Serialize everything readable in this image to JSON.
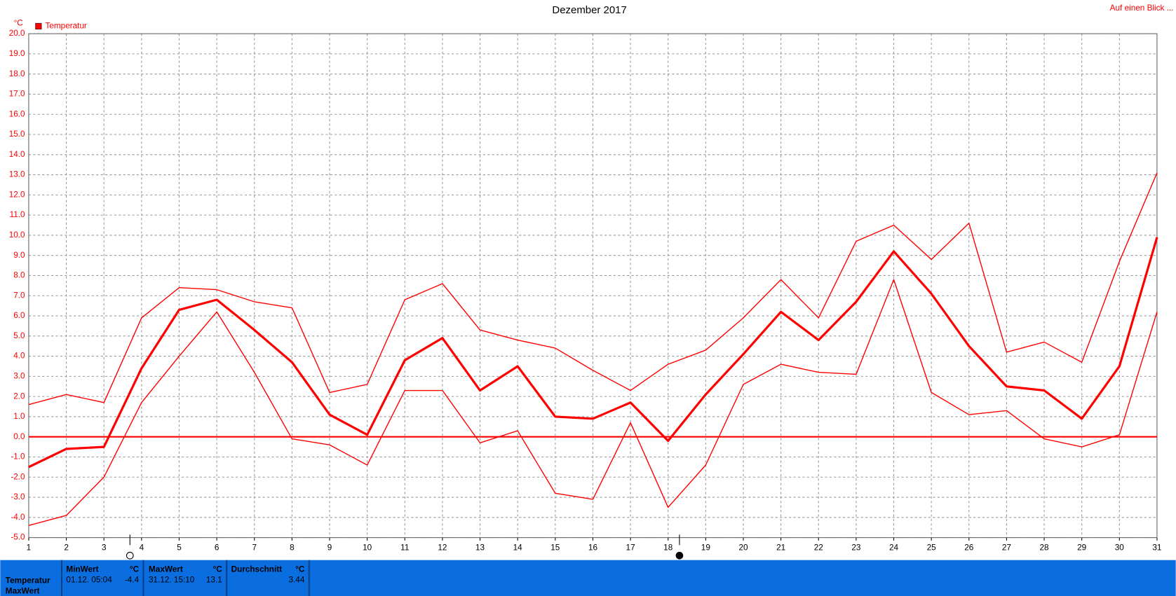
{
  "chart_data": {
    "type": "line",
    "title": "Dezember 2017",
    "y_unit": "°C",
    "legend": "Temperatur",
    "link": "Auf einen Blick ...",
    "x": [
      1,
      2,
      3,
      4,
      5,
      6,
      7,
      8,
      9,
      10,
      11,
      12,
      13,
      14,
      15,
      16,
      17,
      18,
      19,
      20,
      21,
      22,
      23,
      24,
      25,
      26,
      27,
      28,
      29,
      30,
      31
    ],
    "xlim": [
      1,
      31
    ],
    "xticks": [
      1,
      2,
      3,
      4,
      5,
      6,
      7,
      8,
      9,
      10,
      11,
      12,
      13,
      14,
      15,
      16,
      17,
      18,
      19,
      20,
      21,
      22,
      23,
      24,
      25,
      26,
      27,
      28,
      29,
      30,
      31
    ],
    "ylim": [
      -5,
      20
    ],
    "yticks": [
      {
        "value": -5,
        "label": "-5.0"
      },
      {
        "value": -4,
        "label": "-4.0"
      },
      {
        "value": -3,
        "label": "-3.0"
      },
      {
        "value": -2,
        "label": "-2.0"
      },
      {
        "value": -1,
        "label": "-1.0"
      },
      {
        "value": 0,
        "label": "0.0"
      },
      {
        "value": 1,
        "label": "1.0"
      },
      {
        "value": 2,
        "label": "2.0"
      },
      {
        "value": 3,
        "label": "3.0"
      },
      {
        "value": 4,
        "label": "4.0"
      },
      {
        "value": 5,
        "label": "5.0"
      },
      {
        "value": 6,
        "label": "6.0"
      },
      {
        "value": 7,
        "label": "7.0"
      },
      {
        "value": 8,
        "label": "8.0"
      },
      {
        "value": 9,
        "label": "9.0"
      },
      {
        "value": 10,
        "label": "10.0"
      },
      {
        "value": 11,
        "label": "11.0"
      },
      {
        "value": 12,
        "label": "12.0"
      },
      {
        "value": 13,
        "label": "13.0"
      },
      {
        "value": 14,
        "label": "14.0"
      },
      {
        "value": 15,
        "label": "15.0"
      },
      {
        "value": 16,
        "label": "16.0"
      },
      {
        "value": 17,
        "label": "17.0"
      },
      {
        "value": 18,
        "label": "18.0"
      },
      {
        "value": 19,
        "label": "19.0"
      },
      {
        "value": 20,
        "label": "20.0"
      }
    ],
    "grid": true,
    "hline": 0,
    "color": "#ff0000",
    "series": [
      {
        "color": "#ff0000",
        "width": 1.3,
        "values": [
          1.6,
          2.1,
          1.7,
          5.9,
          7.4,
          7.3,
          6.7,
          6.4,
          2.2,
          2.6,
          6.8,
          7.6,
          5.3,
          4.8,
          4.4,
          3.3,
          2.3,
          3.6,
          4.3,
          5.9,
          7.8,
          5.9,
          9.7,
          10.5,
          8.8,
          10.6,
          4.2,
          4.7,
          3.7,
          8.7,
          13.1
        ]
      },
      {
        "color": "#ff0000",
        "width": 3,
        "values": [
          -1.5,
          -0.6,
          -0.5,
          3.4,
          6.3,
          6.8,
          5.3,
          3.7,
          1.1,
          0.1,
          3.8,
          4.9,
          2.3,
          3.5,
          1.0,
          0.9,
          1.7,
          -0.2,
          2.1,
          4.1,
          6.2,
          4.8,
          6.7,
          9.2,
          7.1,
          4.5,
          2.5,
          2.3,
          0.9,
          3.5,
          9.9
        ]
      },
      {
        "color": "#ff0000",
        "width": 1.3,
        "values": [
          -4.4,
          -3.9,
          -2.0,
          1.7,
          4.0,
          6.2,
          3.2,
          -0.1,
          -0.4,
          -1.4,
          2.3,
          2.3,
          -0.3,
          0.3,
          -2.8,
          -3.1,
          0.7,
          -3.5,
          -1.4,
          2.6,
          3.6,
          3.2,
          3.1,
          7.8,
          2.2,
          1.1,
          1.3,
          -0.1,
          -0.5,
          0.1,
          6.2
        ]
      }
    ]
  },
  "table": {
    "headers": [
      "MinWert",
      "°C",
      "MaxWert",
      "°C",
      "Durchschnitt",
      "°C"
    ],
    "rows": [
      [
        "Temperatur",
        "01.12.  05:04",
        "-4.4",
        "31.12.  15:10",
        "13.1",
        "3.44"
      ],
      [
        "MaxWert"
      ]
    ]
  }
}
